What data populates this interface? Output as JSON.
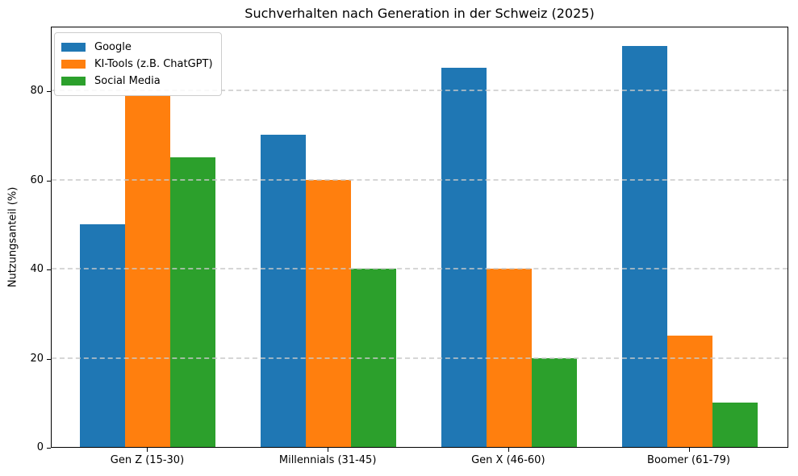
{
  "chart_data": {
    "type": "bar",
    "title": "Suchverhalten nach Generation in der Schweiz (2025)",
    "xlabel": "",
    "ylabel": "Nutzungsanteil (%)",
    "categories": [
      "Gen Z (15-30)",
      "Millennials (31-45)",
      "Gen X (46-60)",
      "Boomer (61-79)"
    ],
    "series": [
      {
        "name": "Google",
        "color": "#1f77b4",
        "values": [
          50,
          70,
          85,
          90
        ]
      },
      {
        "name": "KI-Tools (z.B. ChatGPT)",
        "color": "#ff7f0e",
        "values": [
          79,
          60,
          40,
          25
        ]
      },
      {
        "name": "Social Media",
        "color": "#2ca02c",
        "values": [
          65,
          40,
          20,
          10
        ]
      }
    ],
    "ylim": [
      0,
      94.5
    ],
    "yticks": [
      0,
      20,
      40,
      60,
      80
    ],
    "grid": true,
    "grid_style": "dashed",
    "grid_color": "#c8c8c8",
    "legend_position": "upper left",
    "background_color": "#ffffff",
    "spine_color": "#000000"
  }
}
